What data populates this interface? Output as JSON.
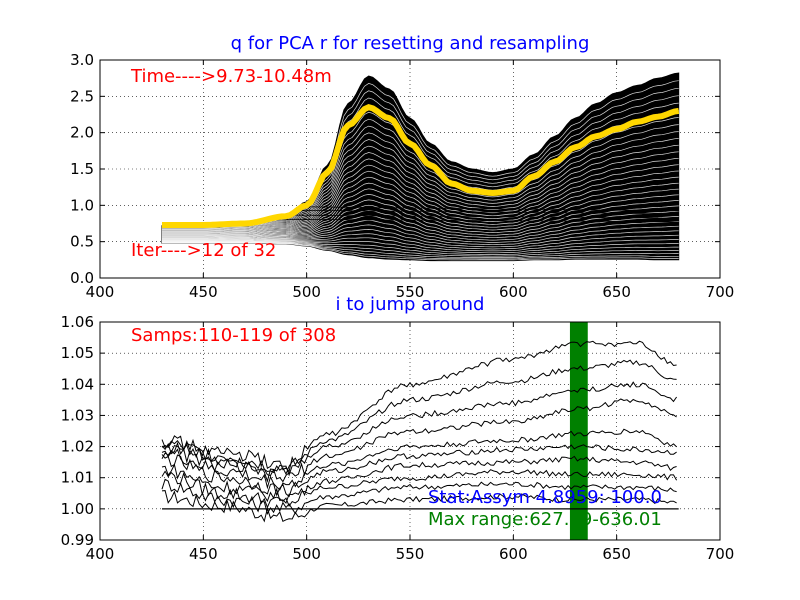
{
  "chart_data": [
    {
      "type": "line",
      "title": "q for PCA r for resetting and resampling",
      "xlim": [
        400,
        700
      ],
      "ylim": [
        0.0,
        3.0
      ],
      "xticks": [
        "400",
        "450",
        "500",
        "550",
        "600",
        "650",
        "700"
      ],
      "yticks": [
        "0.0",
        "0.5",
        "1.0",
        "1.5",
        "2.0",
        "2.5",
        "3.0"
      ],
      "grid": true,
      "annotations": {
        "time": "Time---->9.73-10.48m",
        "iter": "Iter---->12 of 32"
      },
      "band_color": "#000000",
      "line_color": "#ffffff",
      "highlight_color": "#ffd700",
      "series_envelope": {
        "x": [
          430,
          450,
          470,
          490,
          500,
          510,
          520,
          530,
          540,
          550,
          560,
          570,
          580,
          590,
          600,
          610,
          620,
          630,
          640,
          650,
          660,
          670,
          680
        ],
        "upper": [
          0.72,
          0.72,
          0.74,
          0.85,
          1.05,
          1.55,
          2.4,
          2.78,
          2.6,
          2.2,
          1.85,
          1.6,
          1.5,
          1.45,
          1.5,
          1.7,
          1.95,
          2.2,
          2.4,
          2.55,
          2.65,
          2.75,
          2.82
        ],
        "lower": [
          0.48,
          0.48,
          0.48,
          0.47,
          0.44,
          0.38,
          0.32,
          0.28,
          0.26,
          0.25,
          0.24,
          0.24,
          0.24,
          0.24,
          0.24,
          0.25,
          0.25,
          0.26,
          0.26,
          0.26,
          0.26,
          0.25,
          0.25
        ],
        "highlight": [
          0.73,
          0.73,
          0.75,
          0.85,
          1.0,
          1.45,
          2.1,
          2.35,
          2.2,
          1.85,
          1.55,
          1.3,
          1.2,
          1.17,
          1.2,
          1.4,
          1.6,
          1.8,
          1.95,
          2.05,
          2.15,
          2.22,
          2.3
        ]
      }
    },
    {
      "type": "line",
      "title": "i to jump around",
      "xlim": [
        400,
        700
      ],
      "ylim": [
        0.99,
        1.06
      ],
      "xticks": [
        "400",
        "450",
        "500",
        "550",
        "600",
        "650",
        "700"
      ],
      "yticks": [
        "0.99",
        "1.00",
        "1.01",
        "1.02",
        "1.03",
        "1.04",
        "1.05",
        "1.06"
      ],
      "grid": true,
      "annotations": {
        "samps": "Samps:110-119  of  308",
        "stat": "Stat:Assym 4.8959: 100.0",
        "maxrange": "Max range:627.39-636.01"
      },
      "shade": {
        "x0": 627.39,
        "x1": 636.01,
        "color": "#008000"
      },
      "baseline": {
        "x0": 430,
        "x1": 680,
        "y": 1.0
      },
      "series": [
        {
          "x": [
            430,
            460,
            490,
            510,
            550,
            600,
            630,
            660,
            680
          ],
          "y": [
            1.004,
            1.001,
            0.997,
            1.001,
            1.003,
            1.004,
            1.003,
            1.003,
            1.002
          ]
        },
        {
          "x": [
            430,
            460,
            490,
            510,
            550,
            600,
            630,
            660,
            680
          ],
          "y": [
            1.008,
            1.003,
            1.0,
            1.004,
            1.007,
            1.008,
            1.007,
            1.007,
            1.006
          ]
        },
        {
          "x": [
            430,
            460,
            490,
            510,
            550,
            600,
            630,
            660,
            680
          ],
          "y": [
            1.011,
            1.005,
            1.002,
            1.007,
            1.01,
            1.012,
            1.011,
            1.011,
            1.01
          ]
        },
        {
          "x": [
            430,
            460,
            490,
            510,
            550,
            600,
            630,
            660,
            680
          ],
          "y": [
            1.013,
            1.007,
            1.004,
            1.009,
            1.014,
            1.015,
            1.016,
            1.015,
            1.013
          ]
        },
        {
          "x": [
            430,
            460,
            490,
            510,
            550,
            600,
            630,
            660,
            680
          ],
          "y": [
            1.016,
            1.01,
            1.006,
            1.012,
            1.017,
            1.019,
            1.02,
            1.019,
            1.018
          ]
        },
        {
          "x": [
            430,
            460,
            490,
            510,
            550,
            600,
            630,
            660,
            680
          ],
          "y": [
            1.018,
            1.012,
            1.008,
            1.014,
            1.02,
            1.022,
            1.024,
            1.025,
            1.02
          ]
        },
        {
          "x": [
            430,
            460,
            490,
            510,
            550,
            600,
            630,
            660,
            680
          ],
          "y": [
            1.019,
            1.014,
            1.01,
            1.017,
            1.025,
            1.028,
            1.032,
            1.035,
            1.03
          ]
        },
        {
          "x": [
            430,
            460,
            490,
            510,
            550,
            600,
            630,
            660,
            680
          ],
          "y": [
            1.02,
            1.016,
            1.012,
            1.02,
            1.03,
            1.034,
            1.038,
            1.04,
            1.035
          ]
        },
        {
          "x": [
            430,
            460,
            490,
            510,
            550,
            600,
            630,
            660,
            680
          ],
          "y": [
            1.021,
            1.017,
            1.013,
            1.022,
            1.035,
            1.041,
            1.045,
            1.047,
            1.041
          ]
        },
        {
          "x": [
            430,
            460,
            490,
            510,
            550,
            600,
            630,
            660,
            680
          ],
          "y": [
            1.022,
            1.018,
            1.014,
            1.024,
            1.04,
            1.048,
            1.053,
            1.053,
            1.046
          ]
        }
      ]
    }
  ]
}
